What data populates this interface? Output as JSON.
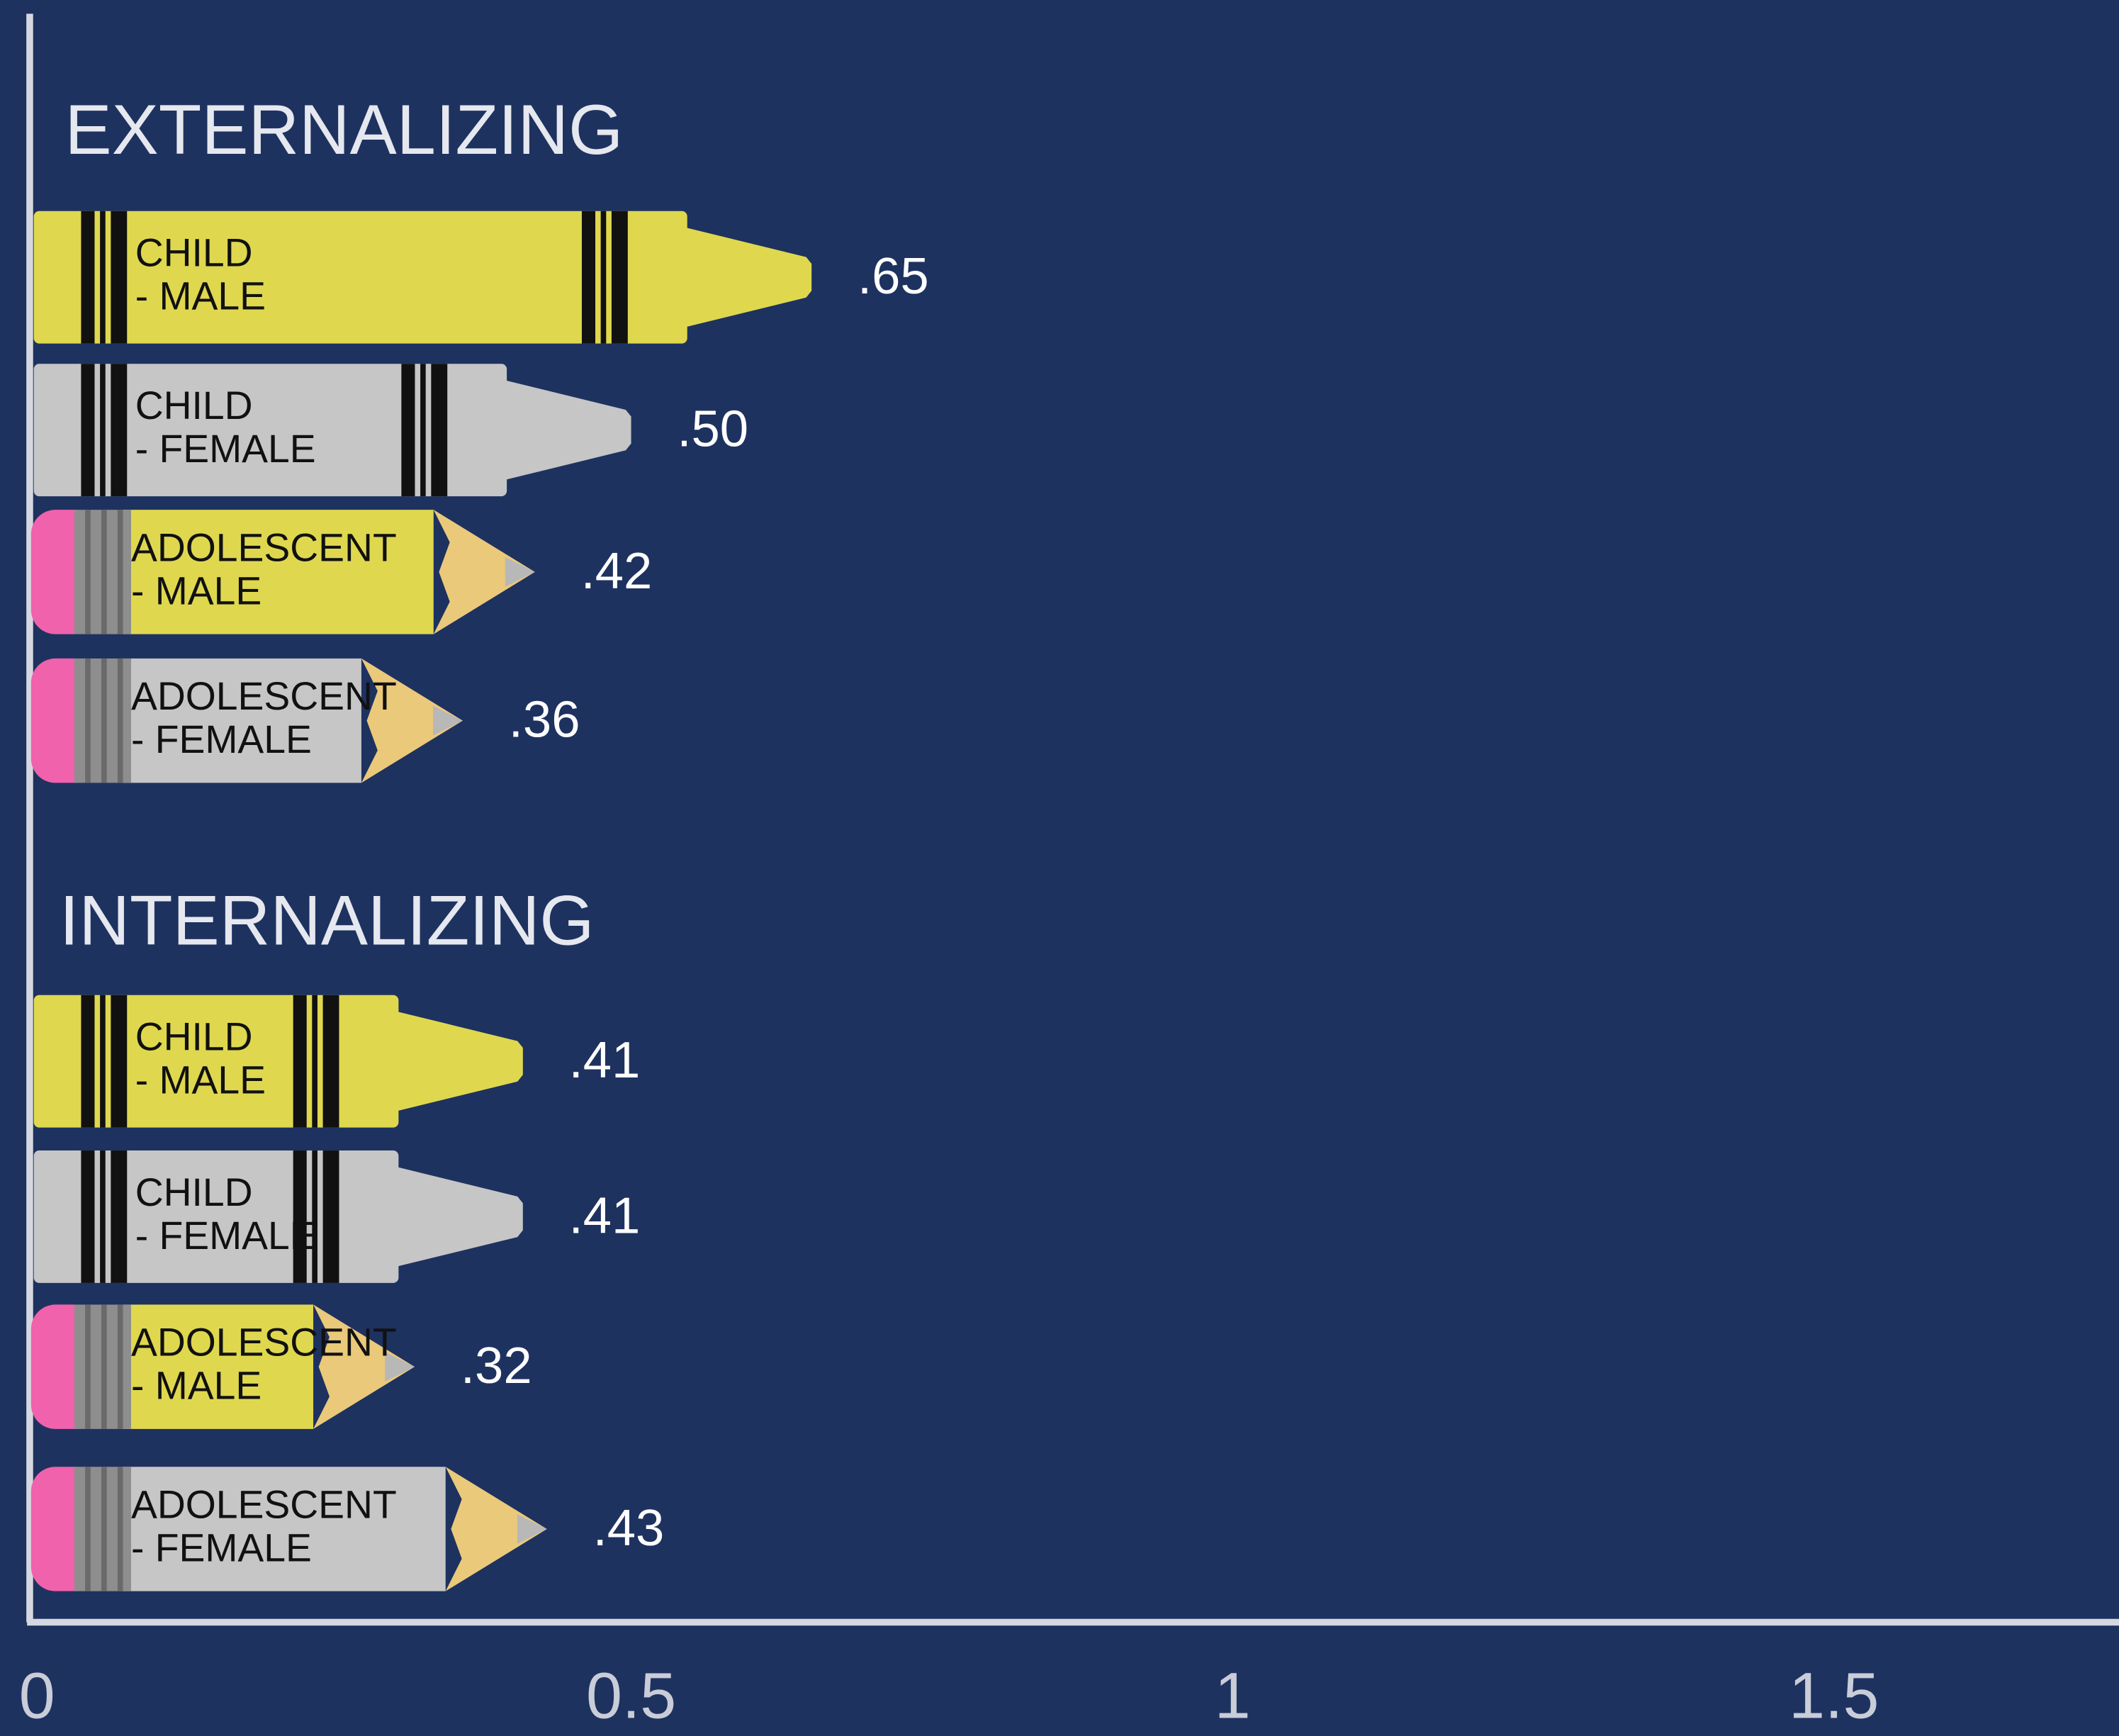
{
  "chart_data": {
    "type": "bar",
    "orientation": "horizontal",
    "xlim": [
      0,
      1.737
    ],
    "xticks": [
      0,
      0.5,
      1,
      1.5
    ],
    "groups": [
      {
        "name": "EXTERNALIZING",
        "categories": [
          [
            "CHILD",
            "- MALE"
          ],
          [
            "CHILD",
            "- FEMALE"
          ],
          [
            "ADOLESCENT",
            "- MALE"
          ],
          [
            "ADOLESCENT",
            "- FEMALE"
          ]
        ],
        "values": [
          0.65,
          0.5,
          0.42,
          0.36
        ],
        "value_labels": [
          ".65",
          ".50",
          ".42",
          ".36"
        ],
        "colors": [
          "#dfd84f",
          "#c6c6c6",
          "#dfd84f",
          "#c6c6c6"
        ],
        "markers": [
          "crayon",
          "crayon",
          "pencil",
          "pencil"
        ]
      },
      {
        "name": "INTERNALIZING",
        "categories": [
          [
            "CHILD",
            "- MALE"
          ],
          [
            "CHILD",
            "- FEMALE"
          ],
          [
            "ADOLESCENT",
            "- MALE"
          ],
          [
            "ADOLESCENT",
            "- FEMALE"
          ]
        ],
        "values": [
          0.41,
          0.41,
          0.32,
          0.43
        ],
        "value_labels": [
          ".41",
          ".41",
          ".32",
          ".43"
        ],
        "colors": [
          "#dfd84f",
          "#c6c6c6",
          "#dfd84f",
          "#c6c6c6"
        ],
        "markers": [
          "crayon",
          "crayon",
          "pencil",
          "pencil"
        ]
      }
    ]
  }
}
